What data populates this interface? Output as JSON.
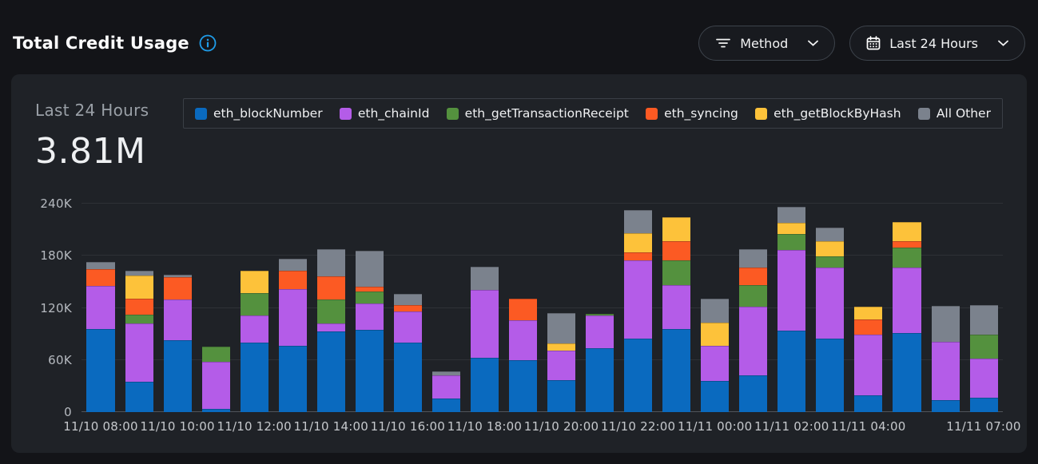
{
  "header": {
    "title": "Total Credit Usage",
    "filters": [
      {
        "icon": "filter-icon",
        "label": "Method"
      },
      {
        "icon": "calendar-icon",
        "label": "Last 24 Hours"
      }
    ]
  },
  "card": {
    "period_label": "Last 24 Hours",
    "total": "3.81M"
  },
  "colors": {
    "accent_info": "#1f9ce8",
    "card_bg": "#1f2227",
    "page_bg": "#131418"
  },
  "chart_data": {
    "type": "bar",
    "stacked": true,
    "title": "Total Credit Usage",
    "ylabel": "",
    "xlabel": "",
    "ylim_k": [
      0,
      240
    ],
    "yticks": [
      {
        "label": "0",
        "value_k": 0
      },
      {
        "label": "60K",
        "value_k": 60
      },
      {
        "label": "120K",
        "value_k": 120
      },
      {
        "label": "180K",
        "value_k": 180
      },
      {
        "label": "240K",
        "value_k": 240
      }
    ],
    "legend_position": "top",
    "series": [
      {
        "name": "eth_blockNumber",
        "color": "#0a6abf"
      },
      {
        "name": "eth_chainId",
        "color": "#b45ce8"
      },
      {
        "name": "eth_getTransactionReceipt",
        "color": "#54913e"
      },
      {
        "name": "eth_syncing",
        "color": "#fc5a23"
      },
      {
        "name": "eth_getBlockByHash",
        "color": "#fdc23a"
      },
      {
        "name": "All Other",
        "color": "#7b828d"
      }
    ],
    "bars_note": "v = stacked values in thousands of credits, bottom-to-top in series order",
    "bars": [
      {
        "tick": "11/10 08:00",
        "v": [
          96,
          49,
          0,
          20,
          0,
          8
        ]
      },
      {
        "tick": "",
        "v": [
          35,
          67,
          10,
          19,
          26,
          6
        ]
      },
      {
        "tick": "11/10 10:00",
        "v": [
          83,
          47,
          0,
          25,
          0,
          3
        ]
      },
      {
        "tick": "",
        "v": [
          4,
          54,
          17,
          0,
          0,
          0
        ]
      },
      {
        "tick": "11/10 12:00",
        "v": [
          80,
          31,
          26,
          0,
          26,
          0
        ]
      },
      {
        "tick": "",
        "v": [
          76,
          66,
          0,
          21,
          0,
          14
        ]
      },
      {
        "tick": "11/10 14:00",
        "v": [
          93,
          9,
          28,
          26,
          0,
          32
        ]
      },
      {
        "tick": "",
        "v": [
          95,
          30,
          14,
          5,
          0,
          42
        ]
      },
      {
        "tick": "11/10 16:00",
        "v": [
          80,
          36,
          0,
          7,
          0,
          13
        ]
      },
      {
        "tick": "",
        "v": [
          16,
          26,
          0,
          0,
          0,
          5
        ]
      },
      {
        "tick": "11/10 18:00",
        "v": [
          63,
          78,
          0,
          0,
          0,
          26
        ]
      },
      {
        "tick": "",
        "v": [
          60,
          46,
          0,
          25,
          0,
          0
        ]
      },
      {
        "tick": "11/10 20:00",
        "v": [
          37,
          34,
          0,
          0,
          8,
          35
        ]
      },
      {
        "tick": "",
        "v": [
          74,
          37,
          2,
          0,
          0,
          0
        ]
      },
      {
        "tick": "11/10 22:00",
        "v": [
          85,
          90,
          0,
          9,
          22,
          27
        ]
      },
      {
        "tick": "",
        "v": [
          96,
          50,
          29,
          22,
          27,
          0
        ]
      },
      {
        "tick": "11/11 00:00",
        "v": [
          36,
          40,
          0,
          0,
          27,
          28
        ]
      },
      {
        "tick": "",
        "v": [
          42,
          79,
          25,
          20,
          0,
          22
        ]
      },
      {
        "tick": "11/11 02:00",
        "v": [
          94,
          93,
          18,
          0,
          13,
          18
        ]
      },
      {
        "tick": "",
        "v": [
          85,
          81,
          13,
          0,
          18,
          15
        ]
      },
      {
        "tick": "11/11 04:00",
        "v": [
          19,
          70,
          0,
          18,
          14,
          0
        ]
      },
      {
        "tick": "",
        "v": [
          91,
          75,
          23,
          8,
          22,
          0
        ]
      },
      {
        "tick": "",
        "v": [
          14,
          67,
          0,
          0,
          0,
          41
        ]
      },
      {
        "tick": "11/11 07:00",
        "v": [
          17,
          45,
          27,
          0,
          0,
          34
        ]
      }
    ]
  }
}
